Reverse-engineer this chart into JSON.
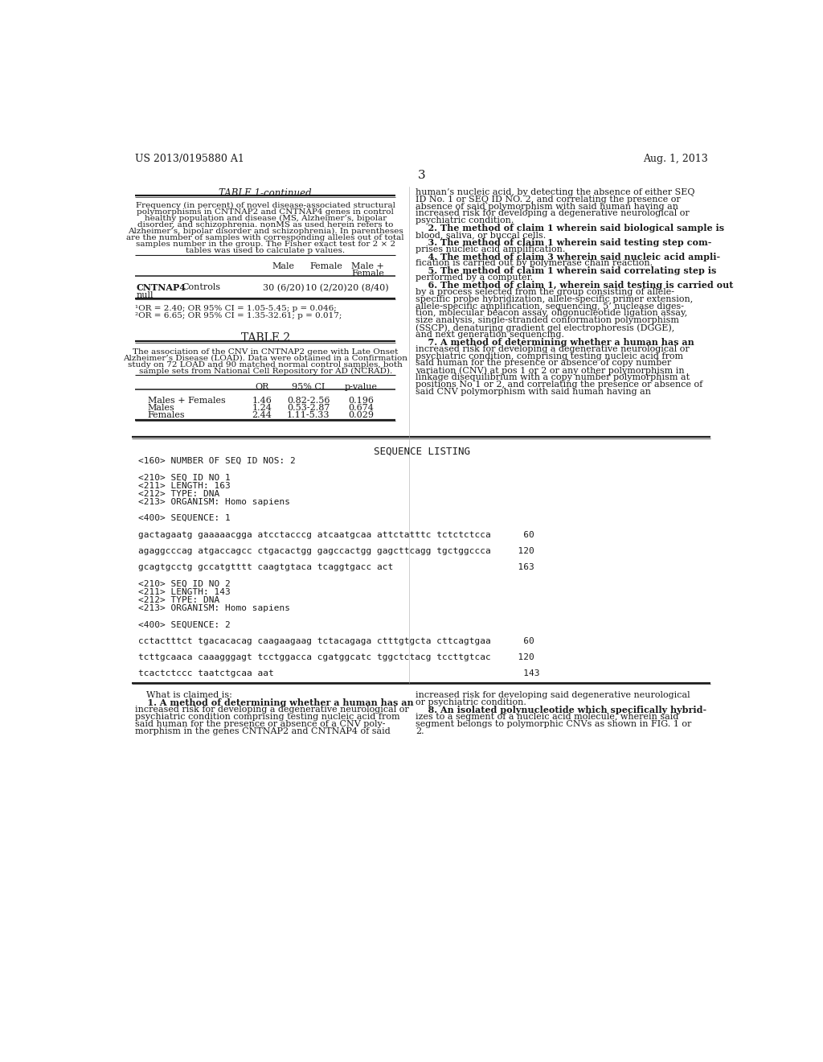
{
  "page_number": "3",
  "header_left": "US 2013/0195880 A1",
  "header_right": "Aug. 1, 2013",
  "bg_color": "#ffffff",
  "table1_title": "TABLE 1-continued",
  "table1_caption_lines": [
    "Frequency (in percent) of novel disease-associated structural",
    "polymorphisms in CNTNAP2 and CNTNAP4 genes in control",
    "healthy population and disease (MS, Alzheimer’s, bipolar",
    "disorder, and schizophrenia. nonMS as used herein refers to",
    "Alzheimer’s, bipolar disorder and schizophrenia). In parentheses",
    "are the number of samples with corresponding alleles out of total",
    "samples number in the group. The Fisher exact test for 2 × 2",
    "tables was used to calculate p values."
  ],
  "table1_col_male": "Male",
  "table1_col_female": "Female",
  "table1_col_mf1": "Male +",
  "table1_col_mf2": "Female",
  "table1_gene": "CNTNAP4",
  "table1_condition": "Controls",
  "table1_male_val": "30 (6/20)",
  "table1_female_val": "10 (2/20)",
  "table1_mf_val": "20 (8/40)",
  "table1_null": "null",
  "table1_fn1": "¹OR = 2.40; OR 95% CI = 1.05-5.45; p = 0.046;",
  "table1_fn2": "²OR = 6.65; OR 95% CI = 1.35-32.61; p = 0.017;",
  "table2_title": "TABLE 2",
  "table2_caption_lines": [
    "The association of the CNV in CNTNAP2 gene with Late Onset",
    "Alzheimer’s Disease (LOAD). Data were obtained in a Confirmation",
    "study on 72 LOAD and 90 matched normal control samples, both",
    "sample sets from National Cell Repository for AD (NCRAD)."
  ],
  "table2_col_or": "OR",
  "table2_col_ci": "95% CI",
  "table2_col_pval": "p-value",
  "table2_rows": [
    [
      "Males + Females",
      "1.46",
      "0.82-2.56",
      "0.196"
    ],
    [
      "Males",
      "1.24",
      "0.53-2.87",
      "0.674"
    ],
    [
      "Females",
      "2.44",
      "1.11-5.33",
      "0.029"
    ]
  ],
  "seq_listing_title": "SEQUENCE LISTING",
  "seq_lines": [
    "<160> NUMBER OF SEQ ID NOS: 2",
    "",
    "<210> SEQ ID NO 1",
    "<211> LENGTH: 163",
    "<212> TYPE: DNA",
    "<213> ORGANISM: Homo sapiens",
    "",
    "<400> SEQUENCE: 1",
    "",
    "gactagaatg gaaaaacgga atcctacccg atcaatgcaa attctatttc tctctctcca      60",
    "",
    "agaggcccag atgaccagcc ctgacactgg gagccactgg gagcttcagg tgctggccca     120",
    "",
    "gcagtgcctg gccatgtttt caagtgtaca tcaggtgacc act                       163",
    "",
    "<210> SEQ ID NO 2",
    "<211> LENGTH: 143",
    "<212> TYPE: DNA",
    "<213> ORGANISM: Homo sapiens",
    "",
    "<400> SEQUENCE: 2",
    "",
    "cctactttct tgacacacag caagaagaag tctacagaga ctttgtgcta cttcagtgaa      60",
    "",
    "tcttgcaaca caaagggagt tcctggacca cgatggcatc tggctctacg tccttgtcac     120",
    "",
    "tcactctccc taatctgcaa aat                                              143"
  ],
  "right_col_lines": [
    "human’s nucleic acid, by detecting the absence of either SEQ",
    "ID No. 1 or SEQ ID NO. 2, and correlating the presence or",
    "absence of said polymorphism with said human having an",
    "increased risk for developing a degenerative neurological or",
    "psychiatric condition.",
    "    2. The method of claim 1 wherein said biological sample is",
    "blood, saliva, or buccal cells.",
    "    3. The method of claim 1 wherein said testing step com-",
    "prises nucleic acid amplification.",
    "    4. The method of claim 3 wherein said nucleic acid ampli-",
    "fication is carried out by polymerase chain reaction.",
    "    5. The method of claim 1 wherein said correlating step is",
    "performed by a computer.",
    "    6. The method of claim 1, wherein said testing is carried out",
    "by a process selected from the group consisting of allele-",
    "specific probe hybridization, allele-specific primer extension,",
    "allele-specific amplification, sequencing, 5’ nuclease diges-",
    "tion, molecular beacon assay, oligonucleotide ligation assay,",
    "size analysis, single-stranded conformation polymorphism",
    "(SSCP), denaturing gradient gel electrophoresis (DGGE),",
    "and next generation sequencing.",
    "    7. A method of determining whether a human has an",
    "increased risk for developing a degenerative neurological or",
    "psychiatric condition, comprising testing nucleic acid from",
    "said human for the presence or absence of copy number",
    "variation (CNV) at pos 1 or 2 or any other polymorphism in",
    "linkage disequilibrium with a copy number polymorphism at",
    "positions No 1 or 2, and correlating the presence or absence of",
    "said CNV polymorphism with said human having an"
  ],
  "right_col_bold_indices": [
    5,
    7,
    9,
    11,
    13,
    21
  ],
  "bottom_left_lines": [
    "    What is claimed is:",
    "    1. A method of determining whether a human has an",
    "increased risk for developing a degenerative neurological or",
    "psychiatric condition comprising testing nucleic acid from",
    "said human for the presence or absence of a CNV poly-",
    "morphism in the genes CNTNAP2 and CNTNAP4 of said"
  ],
  "bottom_left_bold_indices": [
    1
  ],
  "bottom_right_lines": [
    "increased risk for developing said degenerative neurological",
    "or psychiatric condition.",
    "    8. An isolated polynucleotide which specifically hybrid-",
    "izes to a segment of a nucleic acid molecule, wherein said",
    "segment belongs to polymorphic CNVs as shown in FIG. 1 or",
    "2."
  ],
  "bottom_right_bold_indices": [
    2
  ]
}
